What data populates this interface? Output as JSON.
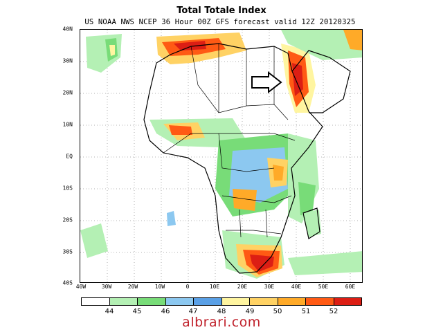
{
  "header": {
    "title": "Total Totale Index",
    "subtitle": "US NOAA NWS NCEP 36 Hour 00Z GFS forecast valid 12Z 20120325"
  },
  "map": {
    "lat_labels": [
      "40N",
      "30N",
      "20N",
      "10N",
      "EQ",
      "10S",
      "20S",
      "30S",
      "40S"
    ],
    "lon_labels": [
      "40W",
      "30W",
      "20W",
      "10W",
      "0",
      "10E",
      "20E",
      "30E",
      "40E",
      "50E",
      "60E"
    ],
    "annotation": "arrow-pointing-east"
  },
  "legend": {
    "colors": [
      "#ffffff",
      "#b4f0b4",
      "#78dc78",
      "#8cc8f0",
      "#5aa0e6",
      "#fff5a0",
      "#ffd264",
      "#ffaa28",
      "#ff5a14",
      "#dc1e14"
    ],
    "labels": [
      "44",
      "45",
      "46",
      "47",
      "48",
      "49",
      "50",
      "51",
      "52"
    ]
  },
  "watermark": "albrari.com"
}
